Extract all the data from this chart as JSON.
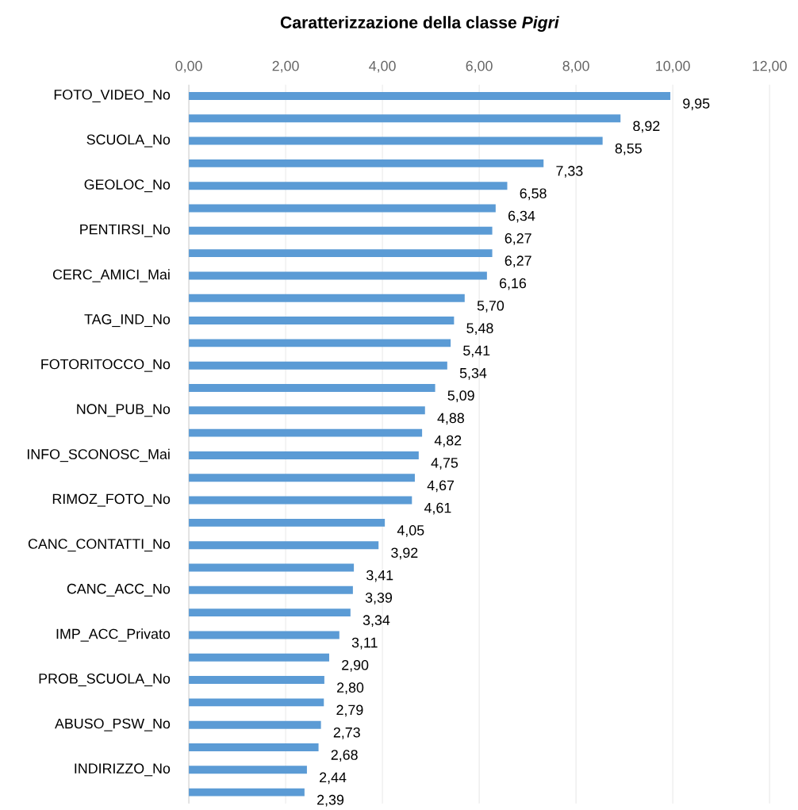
{
  "chart_data": {
    "type": "bar",
    "orientation": "horizontal",
    "title": "Caratterizzazione della classe *Pigri*",
    "categories": [
      "FOTO_VIDEO_No",
      null,
      "SCUOLA_No",
      null,
      "GEOLOC_No",
      null,
      "PENTIRSI_No",
      null,
      "CERC_AMICI_Mai",
      null,
      "TAG_IND_No",
      null,
      "FOTORITOCCO_No",
      null,
      "NON_PUB_No",
      null,
      "INFO_SCONOSC_Mai",
      null,
      "RIMOZ_FOTO_No",
      null,
      "CANC_CONTATTI_No",
      null,
      "CANC_ACC_No",
      null,
      "IMP_ACC_Privato",
      null,
      "PROB_SCUOLA_No",
      null,
      "ABUSO_PSW_No",
      null,
      "INDIRIZZO_No",
      null
    ],
    "values": [
      9.95,
      8.92,
      8.55,
      7.33,
      6.58,
      6.34,
      6.27,
      6.27,
      6.16,
      5.7,
      5.48,
      5.41,
      5.34,
      5.09,
      4.88,
      4.82,
      4.75,
      4.67,
      4.61,
      4.05,
      3.92,
      3.41,
      3.39,
      3.34,
      3.11,
      2.9,
      2.8,
      2.79,
      2.73,
      2.68,
      2.44,
      2.39
    ],
    "value_labels": [
      "9,95",
      "8,92",
      "8,55",
      "7,33",
      "6,58",
      "6,34",
      "6,27",
      "6,27",
      "6,16",
      "5,70",
      "5,48",
      "5,41",
      "5,34",
      "5,09",
      "4,88",
      "4,82",
      "4,75",
      "4,67",
      "4,61",
      "4,05",
      "3,92",
      "3,41",
      "3,39",
      "3,34",
      "3,11",
      "2,90",
      "2,80",
      "2,79",
      "2,73",
      "2,68",
      "2,44",
      "2,39"
    ],
    "color": "#5b9bd5",
    "xlim": [
      0,
      12
    ],
    "xticks": [
      {
        "value": 0,
        "label": "0,00"
      },
      {
        "value": 2,
        "label": "2,00"
      },
      {
        "value": 4,
        "label": "4,00"
      },
      {
        "value": 6,
        "label": "6,00"
      },
      {
        "value": 8,
        "label": "8,00"
      },
      {
        "value": 10,
        "label": "10,00"
      },
      {
        "value": 12,
        "label": "12,00"
      }
    ],
    "grid": "x"
  }
}
